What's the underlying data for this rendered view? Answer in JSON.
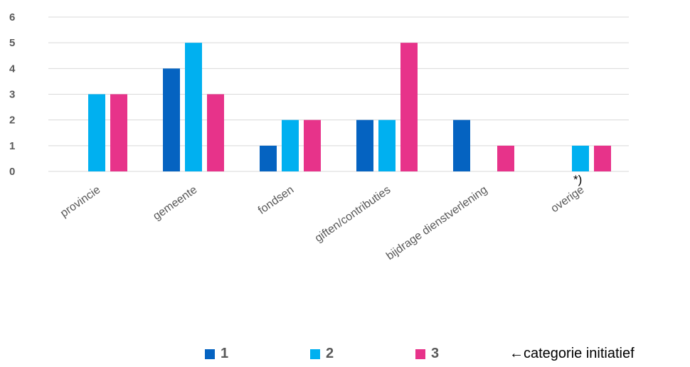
{
  "chart_data": {
    "type": "bar",
    "categories": [
      "provincie",
      "gemeente",
      "fondsen",
      "giften/contributies",
      "bijdrage dienstverlening",
      "overige"
    ],
    "series": [
      {
        "name": "1",
        "values": [
          0,
          4,
          1,
          2,
          2,
          0
        ],
        "color": "#0563C1"
      },
      {
        "name": "2",
        "values": [
          3,
          5,
          2,
          2,
          0,
          1
        ],
        "color": "#00B0F0"
      },
      {
        "name": "3",
        "values": [
          3,
          3,
          2,
          5,
          1,
          1
        ],
        "color": "#E7338A"
      }
    ],
    "ylim": [
      0,
      6
    ],
    "yticks": [
      0,
      1,
      2,
      3,
      4,
      5,
      6
    ],
    "grid": true,
    "show_data_labels": false,
    "legend_position": "bottom",
    "annotation": "*)"
  },
  "legend": {
    "items": [
      "1",
      "2",
      "3"
    ],
    "category_note": "←categorie initiatief"
  }
}
